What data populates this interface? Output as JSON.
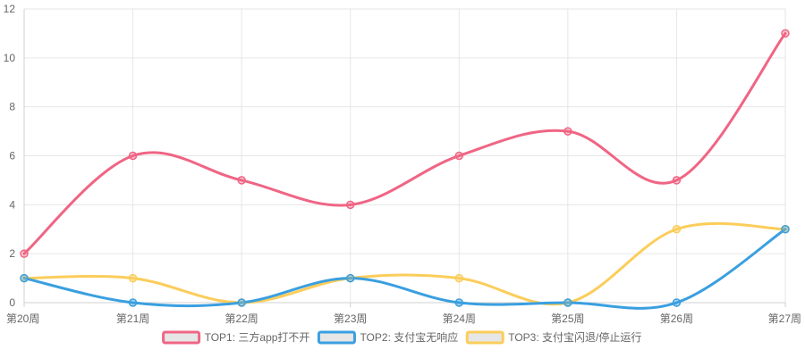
{
  "chart_data": {
    "type": "line",
    "categories": [
      "第20周",
      "第21周",
      "第22周",
      "第23周",
      "第24周",
      "第25周",
      "第26周",
      "第27周"
    ],
    "ylim": [
      0,
      12
    ],
    "yticks": [
      0,
      2,
      4,
      6,
      8,
      10,
      12
    ],
    "grid": true,
    "smooth": true,
    "legend_position": "bottom",
    "series": [
      {
        "name": "TOP1: 三方app打不开",
        "color": "#f06584",
        "values": [
          2,
          6,
          5,
          4,
          6,
          7,
          5,
          11
        ]
      },
      {
        "name": "TOP2: 支付宝无响应",
        "color": "#3a9fe0",
        "values": [
          1,
          0,
          0,
          1,
          0,
          0,
          0,
          3
        ]
      },
      {
        "name": "TOP3: 支付宝闪退/停止运行",
        "color": "#fbcd5a",
        "values": [
          1,
          1,
          0,
          1,
          1,
          0,
          3,
          3
        ]
      }
    ]
  }
}
